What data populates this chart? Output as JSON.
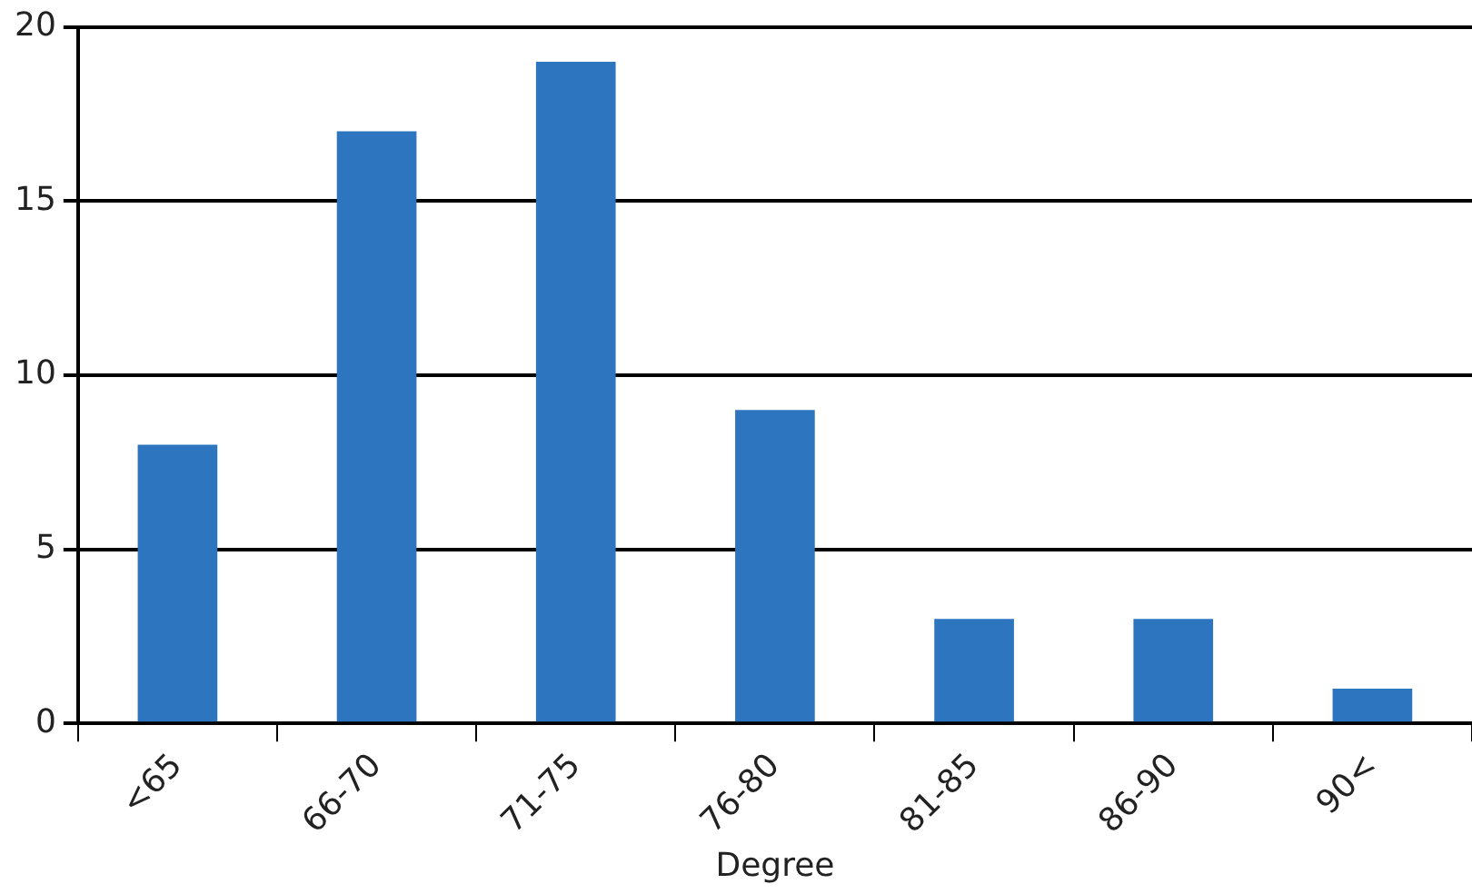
{
  "chart_data": {
    "type": "bar",
    "xlabel": "Degree",
    "categories": [
      "<65",
      "66-70",
      "71-75",
      "76-80",
      "81-85",
      "86-90",
      "90<"
    ],
    "values": [
      8,
      17,
      19,
      9,
      3,
      3,
      1
    ],
    "color": "#2e75c0",
    "ylim": [
      0,
      20
    ],
    "yticks": [
      0,
      5,
      10,
      15,
      20
    ],
    "grid": "y",
    "legend": false
  }
}
